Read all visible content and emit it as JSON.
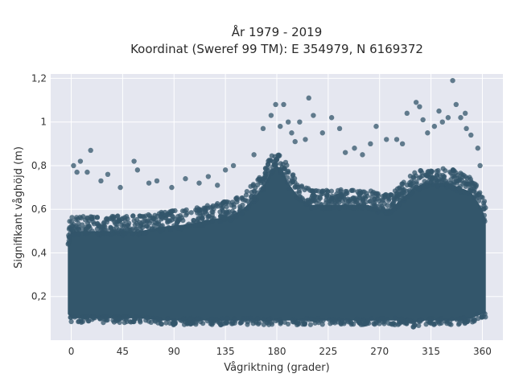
{
  "chart_data": {
    "type": "scatter",
    "title_lines": [
      "År 1979 - 2019",
      "Koordinat (Sweref 99 TM): E 354979, N 6169372"
    ],
    "xlabel": "Vågriktning (grader)",
    "ylabel": "Signifikant våghöjd (m)",
    "xlim": [
      -18,
      378
    ],
    "ylim": [
      0,
      1.22
    ],
    "xticks": [
      0,
      45,
      90,
      135,
      180,
      225,
      270,
      315,
      360
    ],
    "xtick_labels": [
      "0",
      "45",
      "90",
      "135",
      "180",
      "225",
      "270",
      "315",
      "360"
    ],
    "yticks": [
      0.2,
      0.4,
      0.6,
      0.8,
      1.0,
      1.2
    ],
    "ytick_labels": [
      "0,2",
      "0,4",
      "0,6",
      "0,8",
      "1",
      "1,2"
    ],
    "grid": true,
    "background": "#e5e7f0",
    "marker_color": "#33566b",
    "dense_envelope": {
      "direction": [
        -3,
        0,
        20,
        40,
        60,
        80,
        100,
        120,
        140,
        150,
        160,
        170,
        175,
        180,
        185,
        190,
        200,
        210,
        220,
        230,
        240,
        250,
        260,
        270,
        280,
        290,
        300,
        310,
        320,
        330,
        340,
        350,
        360,
        363
      ],
      "lower": [
        0.12,
        0.1,
        0.1,
        0.1,
        0.1,
        0.09,
        0.09,
        0.09,
        0.09,
        0.09,
        0.09,
        0.09,
        0.09,
        0.09,
        0.09,
        0.09,
        0.09,
        0.09,
        0.09,
        0.09,
        0.09,
        0.09,
        0.09,
        0.09,
        0.09,
        0.09,
        0.08,
        0.09,
        0.09,
        0.09,
        0.09,
        0.1,
        0.12,
        0.12
      ],
      "upper": [
        0.45,
        0.5,
        0.5,
        0.5,
        0.5,
        0.52,
        0.53,
        0.55,
        0.57,
        0.6,
        0.65,
        0.72,
        0.78,
        0.8,
        0.78,
        0.72,
        0.65,
        0.62,
        0.62,
        0.62,
        0.62,
        0.62,
        0.62,
        0.6,
        0.6,
        0.65,
        0.7,
        0.72,
        0.72,
        0.72,
        0.7,
        0.68,
        0.6,
        0.55
      ]
    },
    "outliers": [
      {
        "x": 8,
        "y": 0.82
      },
      {
        "x": 14,
        "y": 0.77
      },
      {
        "x": 17,
        "y": 0.87
      },
      {
        "x": 26,
        "y": 0.73
      },
      {
        "x": 43,
        "y": 0.7
      },
      {
        "x": 55,
        "y": 0.82
      },
      {
        "x": 58,
        "y": 0.78
      },
      {
        "x": 68,
        "y": 0.72
      },
      {
        "x": 88,
        "y": 0.7
      },
      {
        "x": 100,
        "y": 0.74
      },
      {
        "x": 120,
        "y": 0.75
      },
      {
        "x": 135,
        "y": 0.78
      },
      {
        "x": 142,
        "y": 0.8
      },
      {
        "x": 168,
        "y": 0.97
      },
      {
        "x": 175,
        "y": 1.03
      },
      {
        "x": 179,
        "y": 1.08
      },
      {
        "x": 186,
        "y": 1.08
      },
      {
        "x": 190,
        "y": 1.0
      },
      {
        "x": 193,
        "y": 0.95
      },
      {
        "x": 200,
        "y": 1.0
      },
      {
        "x": 205,
        "y": 0.92
      },
      {
        "x": 208,
        "y": 1.11
      },
      {
        "x": 212,
        "y": 1.03
      },
      {
        "x": 220,
        "y": 0.95
      },
      {
        "x": 228,
        "y": 1.02
      },
      {
        "x": 235,
        "y": 0.97
      },
      {
        "x": 248,
        "y": 0.88
      },
      {
        "x": 262,
        "y": 0.9
      },
      {
        "x": 267,
        "y": 0.98
      },
      {
        "x": 285,
        "y": 0.92
      },
      {
        "x": 294,
        "y": 1.04
      },
      {
        "x": 302,
        "y": 1.09
      },
      {
        "x": 305,
        "y": 1.07
      },
      {
        "x": 308,
        "y": 1.01
      },
      {
        "x": 318,
        "y": 0.98
      },
      {
        "x": 322,
        "y": 1.05
      },
      {
        "x": 325,
        "y": 1.0
      },
      {
        "x": 330,
        "y": 1.02
      },
      {
        "x": 334,
        "y": 1.19
      },
      {
        "x": 337,
        "y": 1.08
      },
      {
        "x": 341,
        "y": 1.02
      },
      {
        "x": 346,
        "y": 0.97
      },
      {
        "x": 350,
        "y": 0.94
      },
      {
        "x": 356,
        "y": 0.88
      },
      {
        "x": 2,
        "y": 0.8
      },
      {
        "x": 5,
        "y": 0.77
      },
      {
        "x": 32,
        "y": 0.76
      },
      {
        "x": 75,
        "y": 0.73
      },
      {
        "x": 112,
        "y": 0.72
      },
      {
        "x": 128,
        "y": 0.71
      },
      {
        "x": 160,
        "y": 0.85
      },
      {
        "x": 183,
        "y": 0.98
      },
      {
        "x": 196,
        "y": 0.91
      },
      {
        "x": 240,
        "y": 0.86
      },
      {
        "x": 255,
        "y": 0.85
      },
      {
        "x": 276,
        "y": 0.92
      },
      {
        "x": 290,
        "y": 0.9
      },
      {
        "x": 312,
        "y": 0.95
      },
      {
        "x": 345,
        "y": 1.04
      },
      {
        "x": 358,
        "y": 0.8
      }
    ]
  }
}
